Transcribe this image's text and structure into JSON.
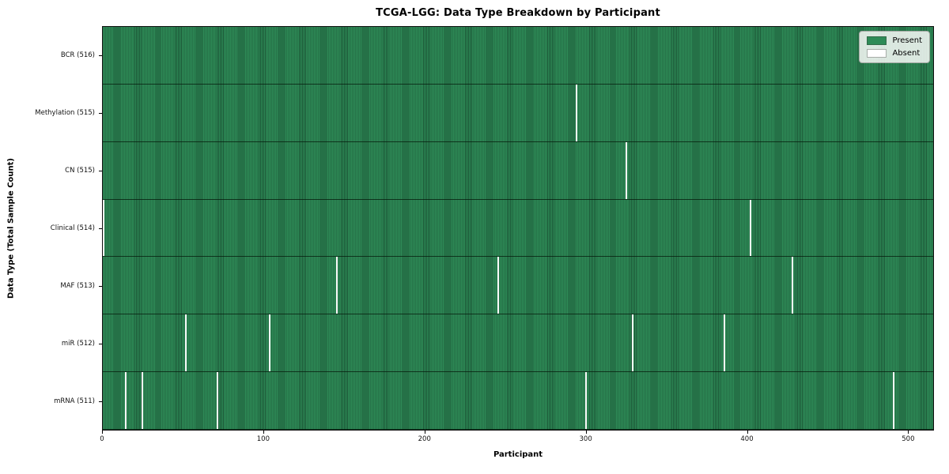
{
  "chart_data": {
    "type": "heatmap",
    "title": "TCGA-LGG: Data Type Breakdown by Participant",
    "xlabel": "Participant",
    "ylabel": "Data Type (Total Sample Count)",
    "x_range": [
      0,
      516
    ],
    "x_ticks": [
      0,
      100,
      200,
      300,
      400,
      500
    ],
    "total_participants": 516,
    "grid": false,
    "legend_position": "upper-right",
    "legend": [
      {
        "label": "Present",
        "color": "#2e8b57"
      },
      {
        "label": "Absent",
        "color": "#ffffff"
      }
    ],
    "colors": {
      "present": "#2e8b57",
      "present_edge": "#1c5737",
      "absent": "#f9f9f9"
    },
    "rows": [
      {
        "label": "BCR (516)",
        "data_type": "BCR",
        "sample_count": 516,
        "absent_participants": []
      },
      {
        "label": "Methylation (515)",
        "data_type": "Methylation",
        "sample_count": 515,
        "absent_participants": [
          294
        ]
      },
      {
        "label": "CN (515)",
        "data_type": "CN",
        "sample_count": 515,
        "absent_participants": [
          325
        ]
      },
      {
        "label": "Clinical (514)",
        "data_type": "Clinical",
        "sample_count": 514,
        "absent_participants": [
          0,
          402
        ]
      },
      {
        "label": "MAF (513)",
        "data_type": "MAF",
        "sample_count": 513,
        "absent_participants": [
          145,
          245,
          428
        ]
      },
      {
        "label": "miR (512)",
        "data_type": "miR",
        "sample_count": 512,
        "absent_participants": [
          51,
          103,
          329,
          386
        ]
      },
      {
        "label": "mRNA (511)",
        "data_type": "mRNA",
        "sample_count": 511,
        "absent_participants": [
          14,
          24,
          71,
          300,
          491
        ]
      }
    ]
  }
}
